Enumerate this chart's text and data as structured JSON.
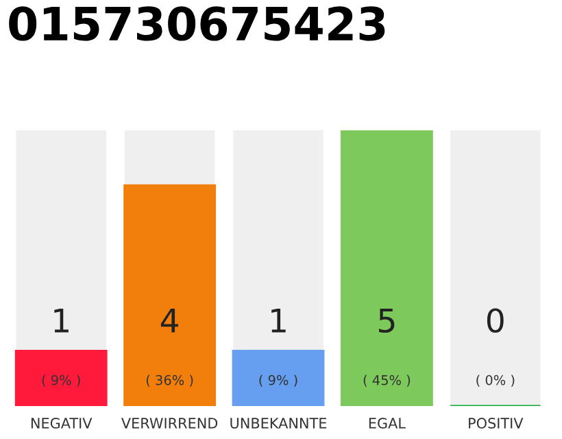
{
  "chart_data": {
    "type": "bar",
    "title": "015730675423",
    "categories": [
      "NEGATIV",
      "VERWIRREND",
      "UNBEKANNTE",
      "EGAL",
      "POSITIV"
    ],
    "values": [
      1,
      4,
      1,
      5,
      0
    ],
    "colors": [
      "#ff1a3c",
      "#f27e0c",
      "#669ef0",
      "#7ec95c",
      "#2bb24c"
    ],
    "data_labels": true,
    "annotations": [
      "( 9% )",
      "( 36% )",
      "( 9% )",
      "( 45% )",
      "( 0% )"
    ],
    "grid": false,
    "legend": false
  }
}
